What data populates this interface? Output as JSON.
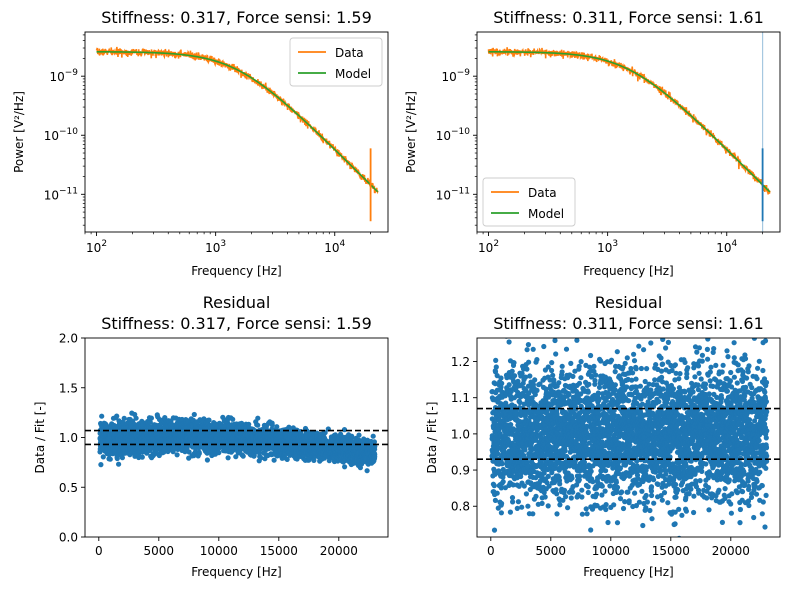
{
  "chart_data": [
    {
      "type": "line",
      "title": "Stiffness: 0.317, Force sensi: 1.59",
      "xlabel": "Frequency [Hz]",
      "ylabel": "Power [V²/Hz]",
      "xscale": "log",
      "yscale": "log",
      "xlim": [
        80,
        28000
      ],
      "ylim": [
        2.3e-12,
        5.6e-09
      ],
      "xticks": [
        {
          "v": 100,
          "b": "10",
          "e": "2"
        },
        {
          "v": 1000,
          "b": "10",
          "e": "3"
        },
        {
          "v": 10000,
          "b": "10",
          "e": "4"
        }
      ],
      "yticks": [
        {
          "v": 1e-11,
          "b": "10",
          "e": "−11"
        },
        {
          "v": 1e-10,
          "b": "10",
          "e": "−10"
        },
        {
          "v": 1e-09,
          "b": "10",
          "e": "−9"
        }
      ],
      "legend": {
        "position": "upper right",
        "entries": [
          {
            "name": "Data",
            "color": "#ff7f0e"
          },
          {
            "name": "Model",
            "color": "#2ca02c"
          }
        ]
      },
      "model": {
        "plateau": 2.6e-09,
        "corner_hz": 1500
      },
      "x_range": [
        100,
        23000
      ],
      "spike": {
        "x": 20000,
        "from": 3.5e-12,
        "to": 6e-11,
        "color": "#ff7f0e"
      },
      "series": [
        {
          "name": "Data",
          "color": "#ff7f0e"
        },
        {
          "name": "Model",
          "color": "#2ca02c"
        }
      ]
    },
    {
      "type": "line",
      "title": "Stiffness: 0.311, Force sensi: 1.61",
      "xlabel": "Frequency [Hz]",
      "ylabel": "Power [V²/Hz]",
      "xscale": "log",
      "yscale": "log",
      "xlim": [
        80,
        28000
      ],
      "ylim": [
        2.3e-12,
        5.6e-09
      ],
      "xticks": [
        {
          "v": 100,
          "b": "10",
          "e": "2"
        },
        {
          "v": 1000,
          "b": "10",
          "e": "3"
        },
        {
          "v": 10000,
          "b": "10",
          "e": "4"
        }
      ],
      "yticks": [
        {
          "v": 1e-11,
          "b": "10",
          "e": "−11"
        },
        {
          "v": 1e-10,
          "b": "10",
          "e": "−10"
        },
        {
          "v": 1e-09,
          "b": "10",
          "e": "−9"
        }
      ],
      "legend": {
        "position": "lower left",
        "entries": [
          {
            "name": "Data",
            "color": "#ff7f0e"
          },
          {
            "name": "Model",
            "color": "#2ca02c"
          }
        ]
      },
      "model": {
        "plateau": 2.6e-09,
        "corner_hz": 1500
      },
      "x_range": [
        100,
        23000
      ],
      "spike": {
        "x": 20000,
        "from": 3.5e-12,
        "to": 6e-11,
        "color": "#1f77b4"
      },
      "vline": {
        "x": 20000,
        "color": "#a6c8e0"
      },
      "series": [
        {
          "name": "Data",
          "color": "#ff7f0e"
        },
        {
          "name": "Model",
          "color": "#2ca02c"
        }
      ]
    },
    {
      "type": "scatter",
      "title": "Residual",
      "subtitle": "Stiffness: 0.317, Force sensi: 1.59",
      "xlabel": "Frequency [Hz]",
      "ylabel": "Data / Fit [-]",
      "xlim": [
        -1150,
        24100
      ],
      "ylim": [
        0.0,
        2.0
      ],
      "xticks": [
        0,
        5000,
        10000,
        15000,
        20000
      ],
      "yticks": [
        0.0,
        0.5,
        1.0,
        1.5,
        2.0
      ],
      "ytick_labels": [
        "0.0",
        "0.5",
        "1.0",
        "1.5",
        "2.0"
      ],
      "hlines": [
        1.07,
        0.93
      ],
      "color": "#1f77b4",
      "x_range": [
        100,
        23000
      ],
      "trend": [
        {
          "x": 0,
          "y": 0.98
        },
        {
          "x": 8000,
          "y": 1.02
        },
        {
          "x": 14000,
          "y": 0.97
        },
        {
          "x": 23000,
          "y": 0.84
        }
      ],
      "spread": 0.085
    },
    {
      "type": "scatter",
      "title": "Residual",
      "subtitle": "Stiffness: 0.311, Force sensi: 1.61",
      "xlabel": "Frequency [Hz]",
      "ylabel": "Data / Fit [-]",
      "xlim": [
        -1150,
        24100
      ],
      "ylim": [
        0.715,
        1.265
      ],
      "xticks": [
        0,
        5000,
        10000,
        15000,
        20000
      ],
      "yticks": [
        0.8,
        0.9,
        1.0,
        1.1,
        1.2
      ],
      "ytick_labels": [
        "0.8",
        "0.9",
        "1.0",
        "1.1",
        "1.2"
      ],
      "hlines": [
        1.07,
        0.93
      ],
      "color": "#1f77b4",
      "x_range": [
        100,
        23000
      ],
      "trend": [
        {
          "x": 0,
          "y": 1.0
        },
        {
          "x": 23000,
          "y": 1.0
        }
      ],
      "spread": 0.09
    }
  ]
}
